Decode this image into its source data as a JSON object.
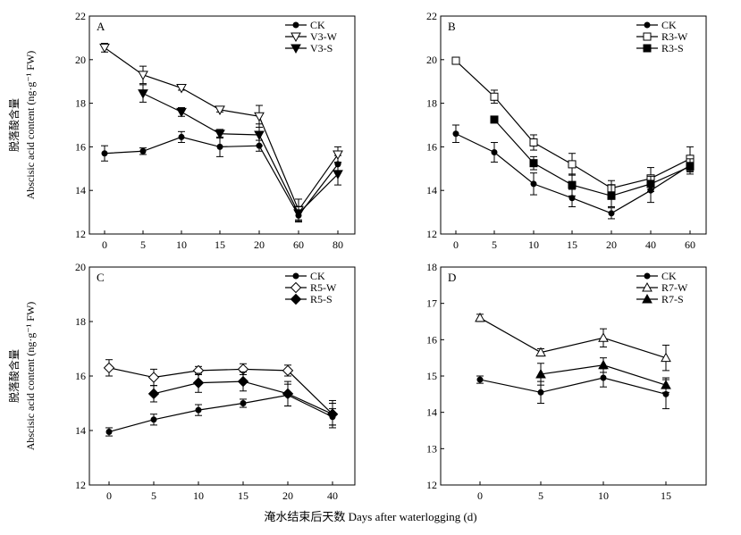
{
  "figure": {
    "x_caption": "淹水结束后天数 Days after waterlogging (d)"
  },
  "chart_data": [
    {
      "type": "line",
      "panel_label": "A",
      "ylabel_cn": "脱落酸含量",
      "ylabel_en": "Abscisic acid content (ng·g⁻¹ FW)",
      "categories": [
        "0",
        "5",
        "10",
        "15",
        "20",
        "60",
        "80"
      ],
      "ylim": [
        12,
        22
      ],
      "yticks": [
        12,
        14,
        16,
        18,
        20,
        22
      ],
      "legend_position": "top-right",
      "series": [
        {
          "name": "CK",
          "marker": "circle",
          "values": [
            15.7,
            15.8,
            16.45,
            16.0,
            16.05,
            12.85,
            15.2
          ],
          "errors": [
            0.35,
            0.15,
            0.25,
            0.45,
            0.25,
            0.3,
            0.4
          ]
        },
        {
          "name": "V3-W",
          "marker": "tri-down-open",
          "values": [
            20.55,
            19.3,
            18.7,
            17.7,
            17.4,
            13.1,
            15.65
          ],
          "errors": [
            0.2,
            0.4,
            0.1,
            0.1,
            0.5,
            0.5,
            0.35
          ]
        },
        {
          "name": "V3-S",
          "marker": "tri-down-filled",
          "values": [
            null,
            18.45,
            17.6,
            16.6,
            16.55,
            12.95,
            14.75
          ],
          "errors": [
            0,
            0.4,
            0.2,
            0.2,
            0.5,
            0.3,
            0.5
          ]
        }
      ]
    },
    {
      "type": "line",
      "panel_label": "B",
      "ylabel_cn": "",
      "ylabel_en": "",
      "categories": [
        "0",
        "5",
        "10",
        "15",
        "20",
        "40",
        "60"
      ],
      "ylim": [
        12,
        22
      ],
      "yticks": [
        12,
        14,
        16,
        18,
        20,
        22
      ],
      "legend_position": "top-right",
      "series": [
        {
          "name": "CK",
          "marker": "circle",
          "values": [
            16.6,
            15.75,
            14.3,
            13.65,
            12.95,
            14.0,
            15.15
          ],
          "errors": [
            0.4,
            0.45,
            0.5,
            0.4,
            0.25,
            0.55,
            0.3
          ]
        },
        {
          "name": "R3-W",
          "marker": "square-open",
          "values": [
            19.95,
            18.3,
            16.2,
            15.2,
            14.1,
            14.55,
            15.45
          ],
          "errors": [
            0,
            0.3,
            0.35,
            0.5,
            0.35,
            0.5,
            0.55
          ]
        },
        {
          "name": "R3-S",
          "marker": "square-filled",
          "values": [
            null,
            17.25,
            15.25,
            14.25,
            13.75,
            14.3,
            15.1
          ],
          "errors": [
            0,
            0,
            0.3,
            0.5,
            0.5,
            0.35,
            0.35
          ]
        }
      ]
    },
    {
      "type": "line",
      "panel_label": "C",
      "ylabel_cn": "脱落酸含量",
      "ylabel_en": "Abscisic acid content (ng·g⁻¹ FW)",
      "categories": [
        "0",
        "5",
        "10",
        "15",
        "20",
        "40"
      ],
      "ylim": [
        12,
        20
      ],
      "yticks": [
        12,
        14,
        16,
        18,
        20
      ],
      "legend_position": "top-right",
      "series": [
        {
          "name": "CK",
          "marker": "circle",
          "values": [
            13.95,
            14.4,
            14.75,
            15.0,
            15.3,
            14.5
          ],
          "errors": [
            0.15,
            0.2,
            0.2,
            0.15,
            0.4,
            0.3
          ]
        },
        {
          "name": "R5-W",
          "marker": "diamond-open",
          "values": [
            16.3,
            15.95,
            16.2,
            16.25,
            16.2,
            14.6
          ],
          "errors": [
            0.3,
            0.3,
            0.15,
            0.2,
            0.2,
            0.5
          ]
        },
        {
          "name": "R5-S",
          "marker": "diamond-filled",
          "values": [
            null,
            15.35,
            15.75,
            15.8,
            15.35,
            14.6
          ],
          "errors": [
            0,
            0.3,
            0.35,
            0.35,
            0.45,
            0.4
          ]
        }
      ]
    },
    {
      "type": "line",
      "panel_label": "D",
      "ylabel_cn": "",
      "ylabel_en": "",
      "categories": [
        "0",
        "5",
        "10",
        "15"
      ],
      "ylim": [
        12,
        18
      ],
      "yticks": [
        12,
        13,
        14,
        15,
        16,
        17,
        18
      ],
      "legend_position": "top-right",
      "series": [
        {
          "name": "CK",
          "marker": "circle",
          "values": [
            14.9,
            14.55,
            14.95,
            14.5
          ],
          "errors": [
            0.1,
            0.3,
            0.25,
            0.4
          ]
        },
        {
          "name": "R7-W",
          "marker": "tri-up-open",
          "values": [
            16.6,
            15.65,
            16.05,
            15.5
          ],
          "errors": [
            0.1,
            0.1,
            0.25,
            0.35
          ]
        },
        {
          "name": "R7-S",
          "marker": "tri-up-filled",
          "values": [
            null,
            15.05,
            15.3,
            14.75
          ],
          "errors": [
            0,
            0.3,
            0.2,
            0.2
          ]
        }
      ]
    }
  ]
}
